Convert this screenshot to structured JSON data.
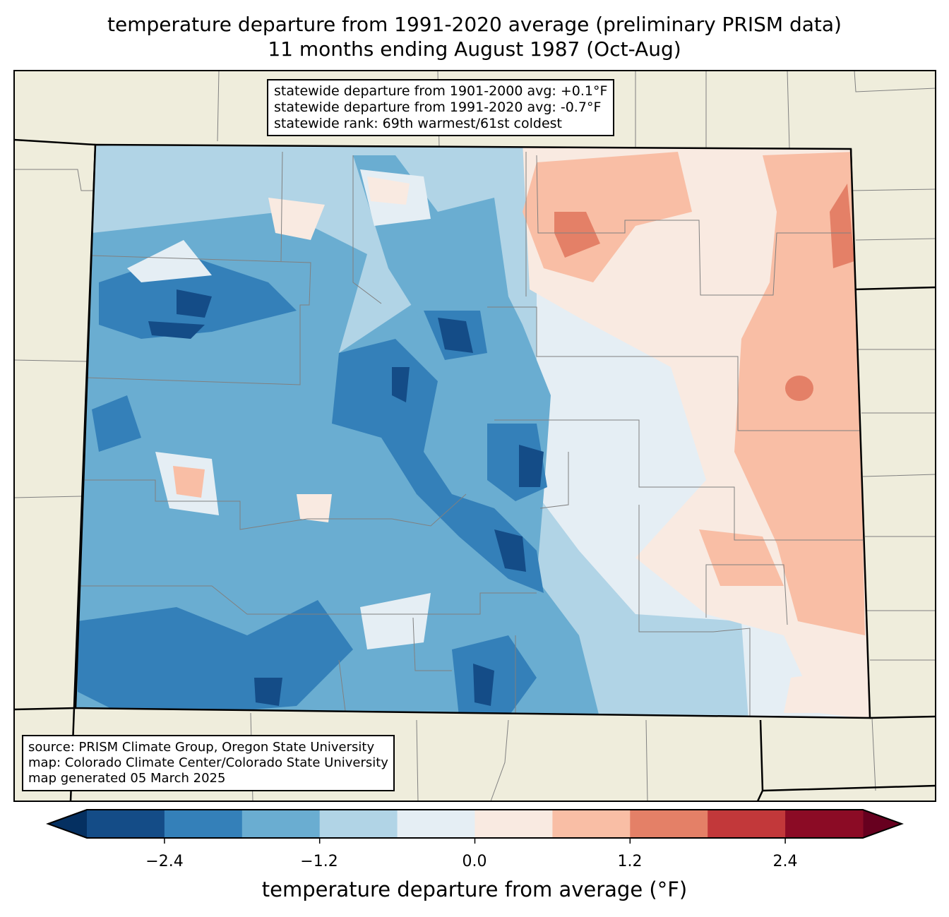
{
  "title": {
    "line1": "temperature departure from 1991-2020 average (preliminary PRISM data)",
    "line2": "11 months ending August 1987 (Oct-Aug)"
  },
  "stats_box": [
    "statewide departure from 1901-2000 avg: +0.1°F",
    "statewide departure from 1991-2020 avg: -0.7°F",
    "statewide rank: 69th warmest/61st coldest"
  ],
  "credits_box": [
    "source: PRISM Climate Group, Oregon State University",
    "map: Colorado Climate Center/Colorado State University",
    "map generated 05 March 2025"
  ],
  "colorbar": {
    "label": "temperature departure from average (°F)",
    "levels": [
      -3.0,
      -2.4,
      -1.8,
      -1.2,
      -0.6,
      0.0,
      0.6,
      1.2,
      1.8,
      2.4,
      3.0
    ],
    "ticks": [
      "−2.4",
      "−1.2",
      "0.0",
      "1.2",
      "2.4"
    ],
    "colors": [
      "#144c87",
      "#3480b9",
      "#6aadd1",
      "#b1d4e6",
      "#e5eef4",
      "#f9eae1",
      "#f9bea5",
      "#e48067",
      "#c2383a",
      "#8b0b25"
    ],
    "under_color": "#053061",
    "over_color": "#67001f"
  },
  "map_colors": {
    "land": "#efeddc",
    "county_lines": "#808080"
  }
}
